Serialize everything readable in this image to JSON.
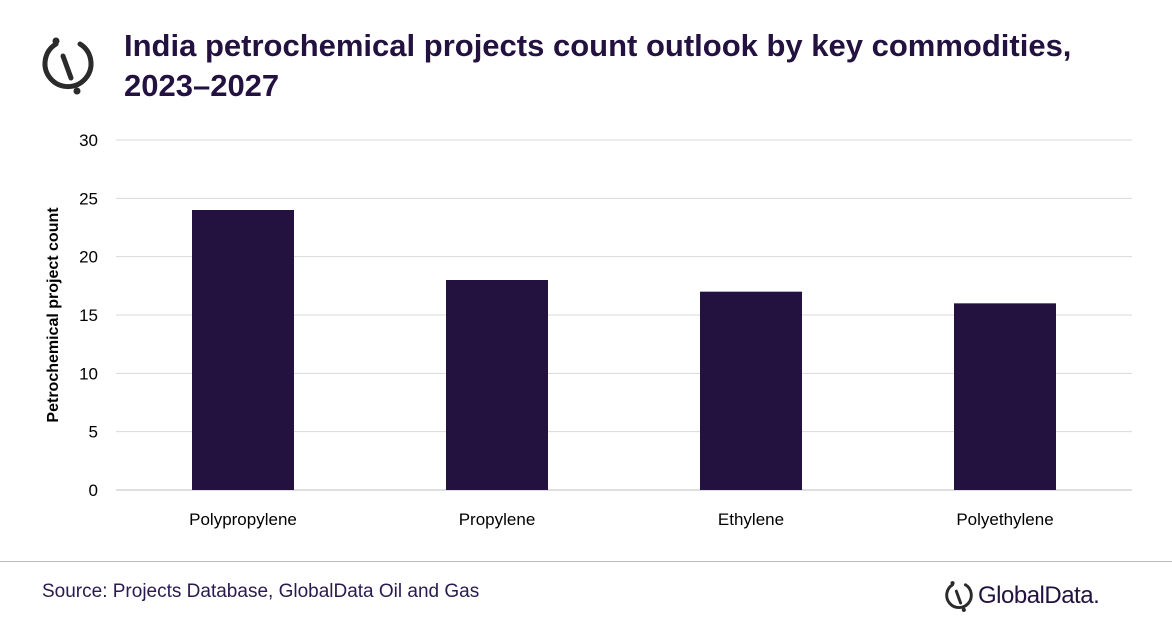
{
  "header": {
    "title": "India petrochemical projects count outlook by key commodities, 2023–2027",
    "logo_icon": "globaldata-emblem-icon"
  },
  "footer": {
    "source": "Source: Projects Database, GlobalData Oil and Gas",
    "brand": "GlobalData."
  },
  "colors": {
    "bar": "#231240",
    "title": "#231240",
    "gridline": "#d9d9d9"
  },
  "chart_data": {
    "type": "bar",
    "title": "India petrochemical projects count outlook by key commodities, 2023–2027",
    "xlabel": "",
    "ylabel": "Petrochemical project count",
    "categories": [
      "Polypropylene",
      "Propylene",
      "Ethylene",
      "Polyethylene"
    ],
    "values": [
      24,
      18,
      17,
      16
    ],
    "ylim": [
      0,
      30
    ],
    "yticks": [
      0,
      5,
      10,
      15,
      20,
      25,
      30
    ],
    "grid": true,
    "legend": "none"
  }
}
